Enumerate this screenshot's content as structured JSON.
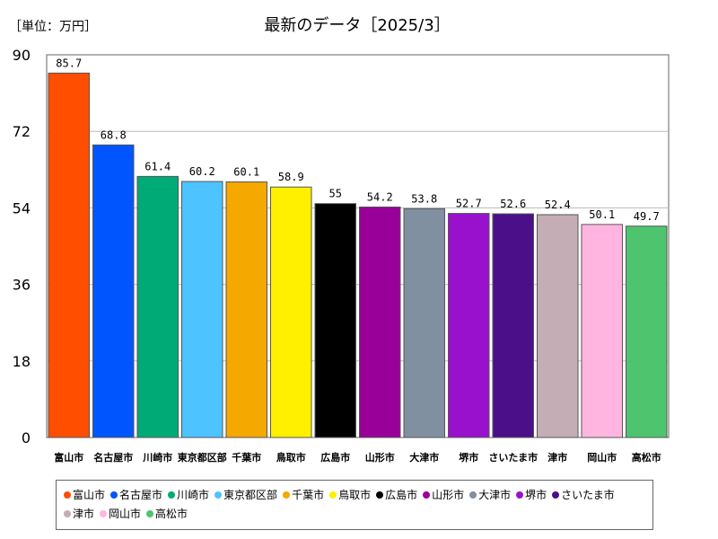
{
  "chart_data": {
    "type": "bar",
    "title": "最新のデータ［2025/3］",
    "unit_label": "［単位：万円］",
    "categories": [
      "富山市",
      "名古屋市",
      "川崎市",
      "東京都区部",
      "千葉市",
      "鳥取市",
      "広島市",
      "山形市",
      "大津市",
      "堺市",
      "さいたま市",
      "津市",
      "岡山市",
      "高松市"
    ],
    "values": [
      85.7,
      68.8,
      61.4,
      60.2,
      60.1,
      58.9,
      55,
      54.2,
      53.8,
      52.7,
      52.6,
      52.4,
      50.1,
      49.7
    ],
    "value_labels": [
      "85.7",
      "68.8",
      "61.4",
      "60.2",
      "60.1",
      "58.9",
      "55",
      "54.2",
      "53.8",
      "52.7",
      "52.6",
      "52.4",
      "50.1",
      "49.7"
    ],
    "colors": [
      "#ff4e00",
      "#0055ff",
      "#00aa77",
      "#4dc3ff",
      "#f5a800",
      "#fff000",
      "#000000",
      "#990099",
      "#8090a0",
      "#9911cc",
      "#4b0f8a",
      "#c4adb5",
      "#ffb5e0",
      "#4ec46e"
    ],
    "yticks": [
      0,
      18,
      36,
      54,
      72,
      90
    ],
    "ylim": [
      0,
      90
    ],
    "grid": true,
    "legend_position": "bottom"
  }
}
